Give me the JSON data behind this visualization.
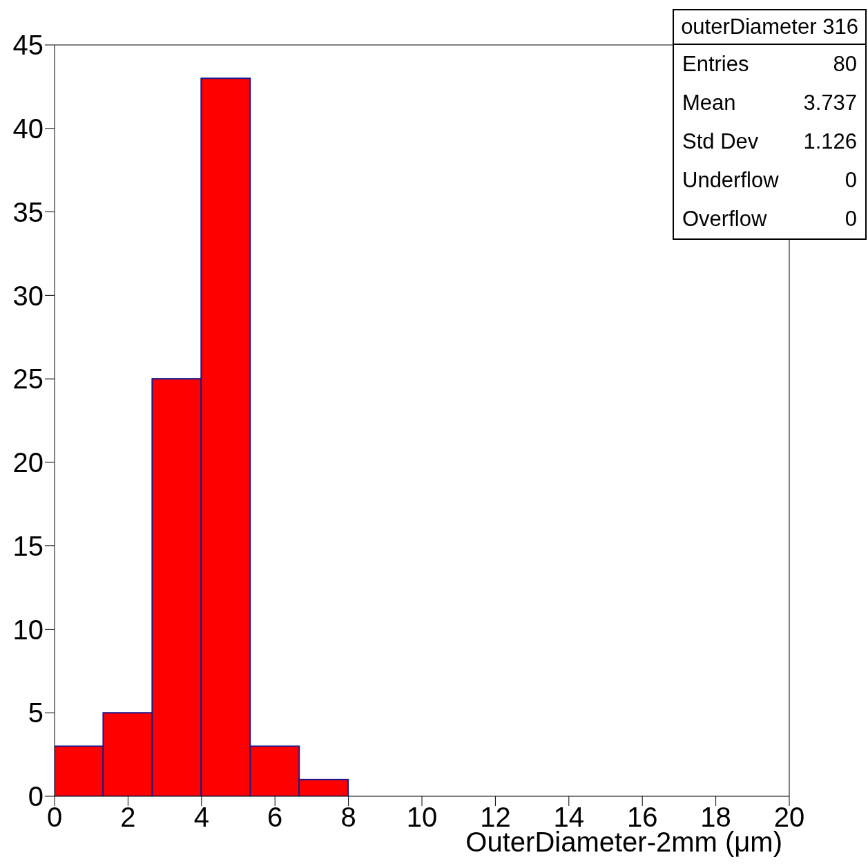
{
  "chart_data": {
    "type": "histogram",
    "xlabel": "OuterDiameter-2mm (μm)",
    "bins": [
      0,
      1.333,
      2.667,
      4,
      5.333,
      6.667,
      8
    ],
    "values": [
      3,
      5,
      25,
      43,
      3,
      1
    ],
    "color": "#ff0000",
    "xlim": [
      0,
      20
    ],
    "xticks": [
      0,
      2,
      4,
      6,
      8,
      10,
      12,
      14,
      16,
      18,
      20
    ],
    "ylim": [
      0,
      45
    ],
    "yticks": [
      0,
      5,
      10,
      15,
      20,
      25,
      30,
      35,
      40,
      45
    ],
    "grid": false,
    "annotations": [
      "outerDiameter 316",
      "Entries",
      "80",
      "Mean",
      "3.737",
      "Std Dev",
      "1.126",
      "Underflow",
      "0",
      "Overflow",
      "0"
    ]
  }
}
